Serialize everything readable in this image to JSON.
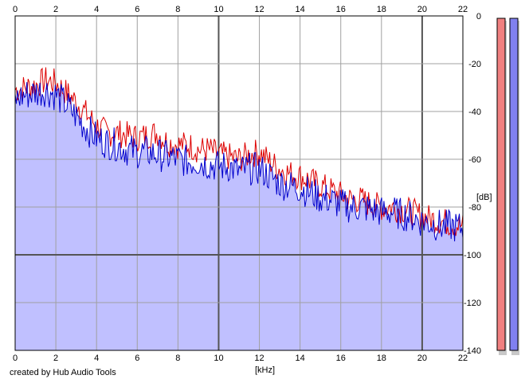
{
  "chart_data": {
    "type": "area",
    "xlabel": "[kHz]",
    "ylabel": "[dB]",
    "xlim": [
      0,
      22
    ],
    "ylim": [
      -140,
      0
    ],
    "x_ticks": [
      0,
      2,
      4,
      6,
      8,
      10,
      12,
      14,
      16,
      18,
      20,
      22
    ],
    "y_ticks": [
      0,
      -20,
      -40,
      -60,
      -80,
      -100,
      -120,
      -140
    ],
    "grid": true,
    "series": [
      {
        "color": "#dd0000",
        "x": [
          0,
          0.5,
          1,
          1.5,
          2,
          2.5,
          3,
          3.5,
          4,
          4.5,
          5,
          5.5,
          6,
          6.5,
          7,
          7.5,
          8,
          8.5,
          9,
          9.5,
          10,
          10.5,
          11,
          11.5,
          12,
          12.5,
          13,
          13.5,
          14,
          14.5,
          15,
          15.5,
          16,
          16.5,
          17,
          17.5,
          18,
          18.5,
          19,
          19.5,
          20,
          20.5,
          21,
          21.5,
          22
        ],
        "values": [
          -31,
          -30,
          -29,
          -27,
          -28,
          -32,
          -36,
          -41,
          -46,
          -49,
          -49,
          -50,
          -51,
          -50,
          -49,
          -53,
          -54,
          -54,
          -56,
          -56,
          -58,
          -59,
          -60,
          -58,
          -57,
          -61,
          -64,
          -66,
          -67,
          -69,
          -71,
          -73,
          -75,
          -77,
          -77,
          -79,
          -80,
          -80,
          -81,
          -82,
          -84,
          -85,
          -86,
          -87,
          -88
        ]
      },
      {
        "color": "#0000cc",
        "x": [
          0,
          0.5,
          1,
          1.5,
          2,
          2.5,
          3,
          3.5,
          4,
          4.5,
          5,
          5.5,
          6,
          6.5,
          7,
          7.5,
          8,
          8.5,
          9,
          9.5,
          10,
          10.5,
          11,
          11.5,
          12,
          12.5,
          13,
          13.5,
          14,
          14.5,
          15,
          15.5,
          16,
          16.5,
          17,
          17.5,
          18,
          18.5,
          19,
          19.5,
          20,
          20.5,
          21,
          21.5,
          22
        ],
        "values": [
          -35,
          -33,
          -32,
          -31,
          -33,
          -37,
          -42,
          -47,
          -51,
          -53,
          -54,
          -56,
          -57,
          -57,
          -58,
          -59,
          -60,
          -61,
          -61,
          -62,
          -63,
          -63,
          -65,
          -64,
          -64,
          -67,
          -70,
          -71,
          -72,
          -74,
          -76,
          -77,
          -79,
          -80,
          -80,
          -81,
          -82,
          -82,
          -83,
          -84,
          -86,
          -87,
          -88,
          -88,
          -89
        ]
      }
    ],
    "level_meters": [
      {
        "color": "#f08080"
      },
      {
        "color": "#8080f0"
      }
    ]
  },
  "footer": {
    "credit": "created by Hub Audio Tools"
  }
}
